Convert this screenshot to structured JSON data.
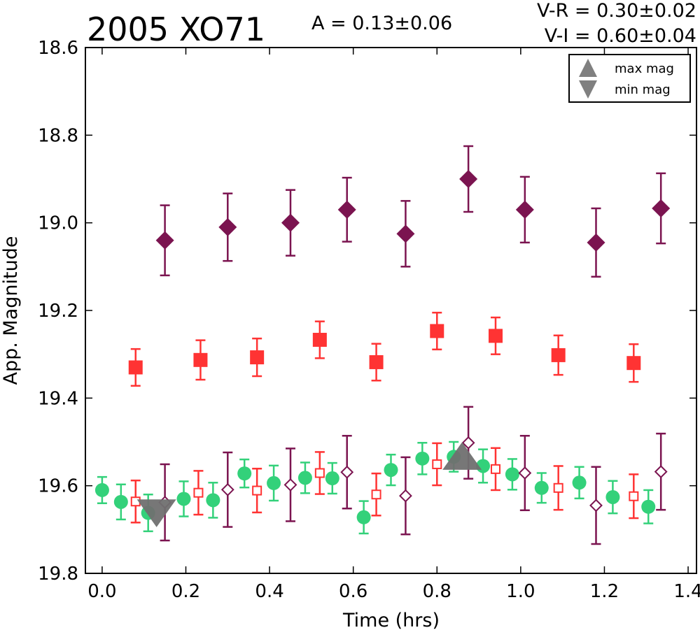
{
  "chart_data": {
    "type": "scatter",
    "title": "2005 XO71",
    "amplitude_text": "A  = 0.13±0.06",
    "color_indices": [
      "V-R = 0.30±0.02",
      "V-I  = 0.60±0.04"
    ],
    "xlabel": "Time (hrs)",
    "ylabel": "App. Magnitude",
    "xlim": [
      -0.04,
      1.42
    ],
    "ylim": [
      18.6,
      19.8
    ],
    "y_inverted": true,
    "xticks": [
      "0.0",
      "0.2",
      "0.4",
      "0.6",
      "0.8",
      "1.0",
      "1.2",
      "1.4"
    ],
    "yticks": [
      "18.6",
      "18.8",
      "19.0",
      "19.2",
      "19.4",
      "19.6",
      "19.8"
    ],
    "grid": false,
    "legend": {
      "placement": "top-right",
      "entries": [
        "max mag",
        "min mag"
      ]
    },
    "colors": {
      "I": "#7b1450",
      "R": "#ff3333",
      "V": "#33d17a",
      "marker": "#707070"
    },
    "series": [
      {
        "band": "I",
        "marker": "diamond",
        "filled": true,
        "errorbars": true,
        "points": [
          [
            0.15,
            19.04,
            0.08
          ],
          [
            0.3,
            19.01,
            0.077
          ],
          [
            0.45,
            19.0,
            0.075
          ],
          [
            0.585,
            18.97,
            0.073
          ],
          [
            0.725,
            19.025,
            0.075
          ],
          [
            0.875,
            18.9,
            0.075
          ],
          [
            1.01,
            18.97,
            0.075
          ],
          [
            1.18,
            19.045,
            0.078
          ],
          [
            1.335,
            18.967,
            0.08
          ]
        ]
      },
      {
        "band": "R",
        "marker": "square",
        "filled": true,
        "errorbars": true,
        "points": [
          [
            0.08,
            19.33,
            0.042
          ],
          [
            0.235,
            19.313,
            0.045
          ],
          [
            0.37,
            19.307,
            0.043
          ],
          [
            0.52,
            19.267,
            0.042
          ],
          [
            0.655,
            19.318,
            0.042
          ],
          [
            0.8,
            19.247,
            0.042
          ],
          [
            0.94,
            19.258,
            0.042
          ],
          [
            1.09,
            19.302,
            0.045
          ],
          [
            1.27,
            19.32,
            0.043
          ]
        ]
      },
      {
        "band": "V",
        "marker": "circle",
        "filled": true,
        "errorbars": true,
        "points": [
          [
            0.0,
            19.61,
            0.03
          ],
          [
            0.045,
            19.637,
            0.04
          ],
          [
            0.11,
            19.662,
            0.042
          ],
          [
            0.195,
            19.63,
            0.04
          ],
          [
            0.265,
            19.633,
            0.04
          ],
          [
            0.34,
            19.572,
            0.032
          ],
          [
            0.41,
            19.594,
            0.04
          ],
          [
            0.485,
            19.582,
            0.035
          ],
          [
            0.55,
            19.583,
            0.035
          ],
          [
            0.625,
            19.672,
            0.037
          ],
          [
            0.69,
            19.564,
            0.035
          ],
          [
            0.765,
            19.538,
            0.036
          ],
          [
            0.84,
            19.534,
            0.034
          ],
          [
            0.91,
            19.555,
            0.038
          ],
          [
            0.98,
            19.574,
            0.035
          ],
          [
            1.05,
            19.605,
            0.034
          ],
          [
            1.14,
            19.593,
            0.036
          ],
          [
            1.22,
            19.626,
            0.037
          ],
          [
            1.305,
            19.648,
            0.038
          ]
        ]
      },
      {
        "band": "R",
        "marker": "square",
        "filled": false,
        "errorbars": true,
        "points": [
          [
            0.08,
            19.636,
            0.048
          ],
          [
            0.23,
            19.616,
            0.05
          ],
          [
            0.37,
            19.611,
            0.05
          ],
          [
            0.52,
            19.571,
            0.048
          ],
          [
            0.655,
            19.62,
            0.048
          ],
          [
            0.8,
            19.551,
            0.048
          ],
          [
            0.94,
            19.562,
            0.048
          ],
          [
            1.09,
            19.605,
            0.05
          ],
          [
            1.27,
            19.624,
            0.05
          ]
        ]
      },
      {
        "band": "I",
        "marker": "diamond",
        "filled": false,
        "errorbars": true,
        "points": [
          [
            0.15,
            19.638,
            0.087
          ],
          [
            0.3,
            19.609,
            0.085
          ],
          [
            0.45,
            19.598,
            0.083
          ],
          [
            0.585,
            19.569,
            0.083
          ],
          [
            0.725,
            19.623,
            0.088
          ],
          [
            0.875,
            19.502,
            0.082
          ],
          [
            1.01,
            19.571,
            0.085
          ],
          [
            1.18,
            19.645,
            0.088
          ],
          [
            1.335,
            19.568,
            0.087
          ]
        ]
      }
    ],
    "extrema_markers": [
      {
        "label": "max mag",
        "shape": "triangle-up",
        "x": 0.86,
        "y": 19.535
      },
      {
        "label": "min mag",
        "shape": "triangle-down",
        "x": 0.13,
        "y": 19.66
      }
    ]
  }
}
